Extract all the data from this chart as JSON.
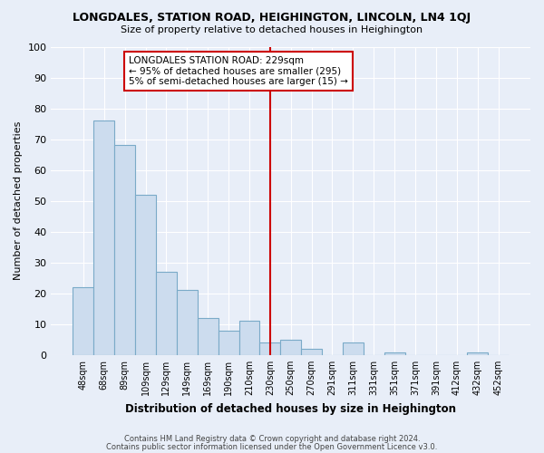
{
  "title": "LONGDALES, STATION ROAD, HEIGHINGTON, LINCOLN, LN4 1QJ",
  "subtitle": "Size of property relative to detached houses in Heighington",
  "xlabel": "Distribution of detached houses by size in Heighington",
  "ylabel": "Number of detached properties",
  "categories": [
    "48sqm",
    "68sqm",
    "89sqm",
    "109sqm",
    "129sqm",
    "149sqm",
    "169sqm",
    "190sqm",
    "210sqm",
    "230sqm",
    "250sqm",
    "270sqm",
    "291sqm",
    "311sqm",
    "331sqm",
    "351sqm",
    "371sqm",
    "391sqm",
    "412sqm",
    "432sqm",
    "452sqm"
  ],
  "values": [
    22,
    76,
    68,
    52,
    27,
    21,
    12,
    8,
    11,
    4,
    5,
    2,
    0,
    4,
    0,
    1,
    0,
    0,
    0,
    1,
    0
  ],
  "bar_color": "#ccdcee",
  "bar_edge_color": "#7aaac8",
  "background_color": "#e8eef8",
  "grid_color": "#ffffff",
  "vline_index": 9,
  "vline_color": "#cc0000",
  "annotation_text": "LONGDALES STATION ROAD: 229sqm\n← 95% of detached houses are smaller (295)\n5% of semi-detached houses are larger (15) →",
  "annotation_box_color": "#ffffff",
  "annotation_box_edge": "#cc0000",
  "ylim": [
    0,
    100
  ],
  "yticks": [
    0,
    10,
    20,
    30,
    40,
    50,
    60,
    70,
    80,
    90,
    100
  ],
  "footer_line1": "Contains HM Land Registry data © Crown copyright and database right 2024.",
  "footer_line2": "Contains public sector information licensed under the Open Government Licence v3.0."
}
